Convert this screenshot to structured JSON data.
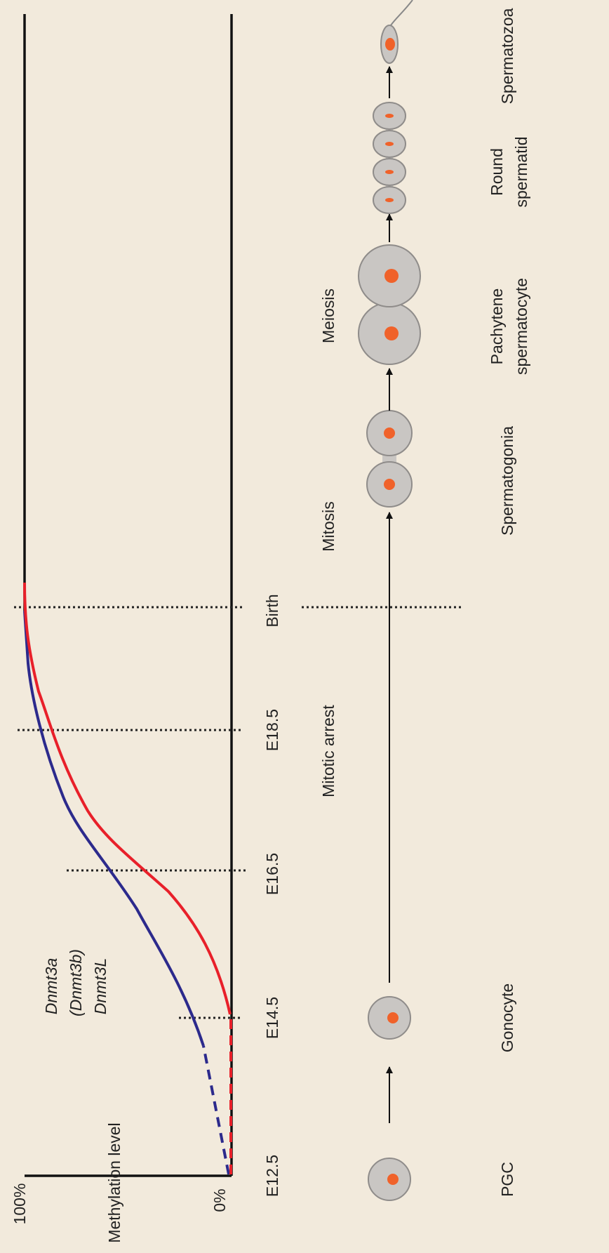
{
  "axis": {
    "y_label": "Methylation level",
    "y_max": "100%",
    "y_min": "0%",
    "x_labels": [
      "E12.5",
      "E14.5",
      "E16.5",
      "E18.5",
      "Birth"
    ]
  },
  "genes": [
    "Dnmt3a",
    "(Dnmt3b)",
    "Dnmt3L"
  ],
  "phases": [
    "Mitotic arrest",
    "Mitosis",
    "Meiosis"
  ],
  "stages": [
    [
      "PGC"
    ],
    [
      "Gonocyte"
    ],
    [
      "Spermatogonia"
    ],
    [
      "Pachytene",
      "spermatocyte"
    ],
    [
      "Round",
      "spermatid"
    ],
    [
      "Spermatozoa"
    ]
  ]
}
